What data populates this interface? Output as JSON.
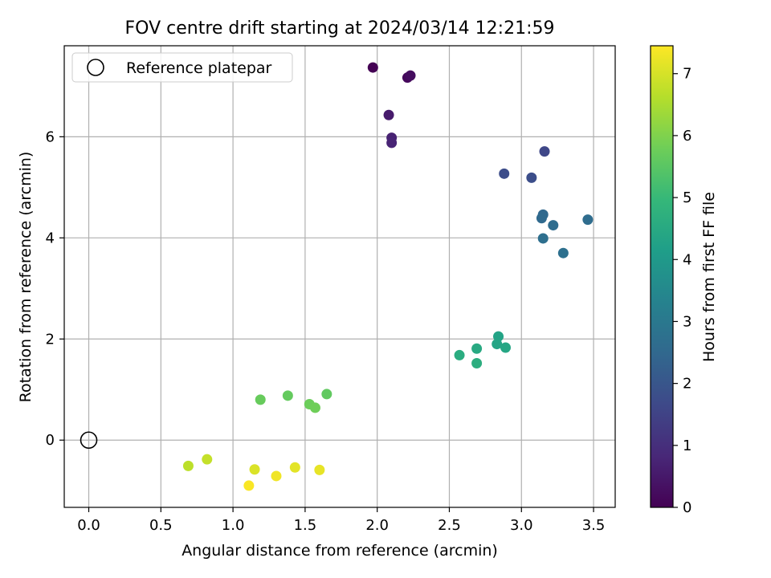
{
  "chart_data": {
    "type": "scatter",
    "title": "FOV centre drift starting at 2024/03/14 12:21:59",
    "xlabel": "Angular distance from reference (arcmin)",
    "ylabel": "Rotation from reference (arcmin)",
    "xlim": [
      -0.17,
      3.65
    ],
    "ylim": [
      -1.33,
      7.8
    ],
    "xticks": [
      0.0,
      0.5,
      1.0,
      1.5,
      2.0,
      2.5,
      3.0,
      3.5
    ],
    "xtick_labels": [
      "0.0",
      "0.5",
      "1.0",
      "1.5",
      "2.0",
      "2.5",
      "3.0",
      "3.5"
    ],
    "yticks": [
      0,
      2,
      4,
      6
    ],
    "ytick_labels": [
      "0",
      "2",
      "4",
      "6"
    ],
    "grid": true,
    "legend": {
      "placement": "top-left",
      "label": "Reference platepar"
    },
    "reference_point": {
      "x": 0.0,
      "y": 0.0
    },
    "colorbar": {
      "label": "Hours from first FF file",
      "range": [
        0,
        7.45
      ],
      "ticks": [
        0,
        1,
        2,
        3,
        4,
        5,
        6,
        7
      ],
      "tick_labels": [
        "0",
        "1",
        "2",
        "3",
        "4",
        "5",
        "6",
        "7"
      ],
      "colormap": "viridis",
      "colors": [
        "#440154",
        "#482878",
        "#3e4989",
        "#31688e",
        "#26828e",
        "#1f9e89",
        "#35b779",
        "#6ece58",
        "#b5de2b",
        "#fde725"
      ]
    },
    "points": [
      {
        "x": 1.97,
        "y": 7.37,
        "hours": 0.0
      },
      {
        "x": 2.21,
        "y": 7.17,
        "hours": 0.15
      },
      {
        "x": 2.23,
        "y": 7.21,
        "hours": 0.25
      },
      {
        "x": 2.08,
        "y": 6.43,
        "hours": 0.55
      },
      {
        "x": 2.1,
        "y": 5.98,
        "hours": 0.7
      },
      {
        "x": 2.1,
        "y": 5.88,
        "hours": 0.75
      },
      {
        "x": 3.16,
        "y": 5.71,
        "hours": 1.6
      },
      {
        "x": 2.88,
        "y": 5.27,
        "hours": 1.75
      },
      {
        "x": 3.07,
        "y": 5.19,
        "hours": 1.8
      },
      {
        "x": 3.15,
        "y": 4.46,
        "hours": 2.5
      },
      {
        "x": 3.14,
        "y": 4.39,
        "hours": 2.55
      },
      {
        "x": 3.22,
        "y": 4.25,
        "hours": 2.6
      },
      {
        "x": 3.46,
        "y": 4.36,
        "hours": 2.65
      },
      {
        "x": 3.15,
        "y": 3.99,
        "hours": 2.7
      },
      {
        "x": 3.29,
        "y": 3.7,
        "hours": 2.75
      },
      {
        "x": 2.84,
        "y": 2.05,
        "hours": 4.3
      },
      {
        "x": 2.83,
        "y": 1.9,
        "hours": 4.35
      },
      {
        "x": 2.89,
        "y": 1.83,
        "hours": 4.4
      },
      {
        "x": 2.69,
        "y": 1.81,
        "hours": 4.5
      },
      {
        "x": 2.57,
        "y": 1.68,
        "hours": 4.6
      },
      {
        "x": 2.69,
        "y": 1.52,
        "hours": 4.65
      },
      {
        "x": 1.65,
        "y": 0.91,
        "hours": 5.6
      },
      {
        "x": 1.38,
        "y": 0.88,
        "hours": 5.65
      },
      {
        "x": 1.19,
        "y": 0.8,
        "hours": 5.7
      },
      {
        "x": 1.53,
        "y": 0.71,
        "hours": 5.75
      },
      {
        "x": 1.57,
        "y": 0.64,
        "hours": 5.8
      },
      {
        "x": 0.69,
        "y": -0.51,
        "hours": 6.7
      },
      {
        "x": 0.82,
        "y": -0.38,
        "hours": 6.8
      },
      {
        "x": 1.15,
        "y": -0.58,
        "hours": 7.05
      },
      {
        "x": 1.43,
        "y": -0.54,
        "hours": 7.15
      },
      {
        "x": 1.6,
        "y": -0.59,
        "hours": 7.2
      },
      {
        "x": 1.3,
        "y": -0.71,
        "hours": 7.3
      },
      {
        "x": 1.11,
        "y": -0.9,
        "hours": 7.4
      }
    ]
  }
}
